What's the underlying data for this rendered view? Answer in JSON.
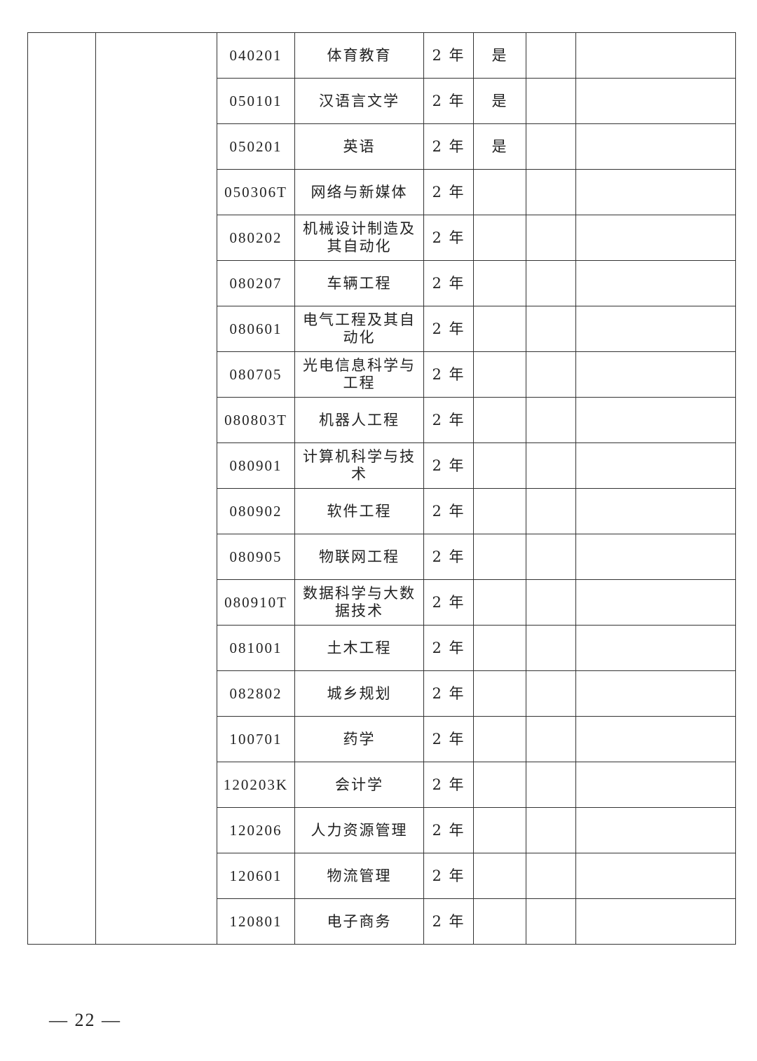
{
  "rows": [
    {
      "code": "040201",
      "name": "体育教育",
      "duration": "2 年",
      "flag": "是"
    },
    {
      "code": "050101",
      "name": "汉语言文学",
      "duration": "2 年",
      "flag": "是"
    },
    {
      "code": "050201",
      "name": "英语",
      "duration": "2 年",
      "flag": "是"
    },
    {
      "code": "050306T",
      "name": "网络与新媒体",
      "duration": "2 年",
      "flag": ""
    },
    {
      "code": "080202",
      "name": "机械设计制造及其自动化",
      "duration": "2 年",
      "flag": ""
    },
    {
      "code": "080207",
      "name": "车辆工程",
      "duration": "2 年",
      "flag": ""
    },
    {
      "code": "080601",
      "name": "电气工程及其自动化",
      "duration": "2 年",
      "flag": ""
    },
    {
      "code": "080705",
      "name": "光电信息科学与工程",
      "duration": "2 年",
      "flag": ""
    },
    {
      "code": "080803T",
      "name": "机器人工程",
      "duration": "2 年",
      "flag": ""
    },
    {
      "code": "080901",
      "name": "计算机科学与技术",
      "duration": "2 年",
      "flag": ""
    },
    {
      "code": "080902",
      "name": "软件工程",
      "duration": "2 年",
      "flag": ""
    },
    {
      "code": "080905",
      "name": "物联网工程",
      "duration": "2 年",
      "flag": ""
    },
    {
      "code": "080910T",
      "name": "数据科学与大数据技术",
      "duration": "2 年",
      "flag": ""
    },
    {
      "code": "081001",
      "name": "土木工程",
      "duration": "2 年",
      "flag": ""
    },
    {
      "code": "082802",
      "name": "城乡规划",
      "duration": "2 年",
      "flag": ""
    },
    {
      "code": "100701",
      "name": "药学",
      "duration": "2 年",
      "flag": ""
    },
    {
      "code": "120203K",
      "name": "会计学",
      "duration": "2 年",
      "flag": ""
    },
    {
      "code": "120206",
      "name": "人力资源管理",
      "duration": "2 年",
      "flag": ""
    },
    {
      "code": "120601",
      "name": "物流管理",
      "duration": "2 年",
      "flag": ""
    },
    {
      "code": "120801",
      "name": "电子商务",
      "duration": "2 年",
      "flag": ""
    }
  ],
  "page_number": "— 22 —"
}
